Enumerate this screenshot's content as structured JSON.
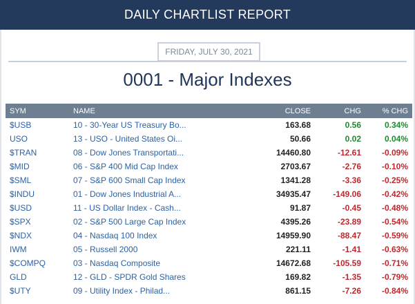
{
  "header": {
    "title": "DAILY CHARTLIST REPORT"
  },
  "date": "FRIDAY, JULY 30, 2021",
  "page_title": "0001 - Major Indexes",
  "table": {
    "columns": [
      "SYM",
      "NAME",
      "CLOSE",
      "CHG",
      "% CHG"
    ],
    "rows": [
      {
        "sym": "$USB",
        "name": "10 - 30-Year US Treasury Bo...",
        "close": "163.68",
        "chg": "0.56",
        "pct": "0.34%",
        "dir": "up"
      },
      {
        "sym": "USO",
        "name": "13 - USO - United States Oi...",
        "close": "50.66",
        "chg": "0.02",
        "pct": "0.04%",
        "dir": "up"
      },
      {
        "sym": "$TRAN",
        "name": "08 - Dow Jones Transportati...",
        "close": "14460.80",
        "chg": "-12.61",
        "pct": "-0.09%",
        "dir": "down"
      },
      {
        "sym": "$MID",
        "name": "06 - S&P 400 Mid Cap Index",
        "close": "2703.67",
        "chg": "-2.76",
        "pct": "-0.10%",
        "dir": "down"
      },
      {
        "sym": "$SML",
        "name": "07 - S&P 600 Small Cap Index",
        "close": "1341.28",
        "chg": "-3.36",
        "pct": "-0.25%",
        "dir": "down"
      },
      {
        "sym": "$INDU",
        "name": "01 - Dow Jones Industrial A...",
        "close": "34935.47",
        "chg": "-149.06",
        "pct": "-0.42%",
        "dir": "down"
      },
      {
        "sym": "$USD",
        "name": "11 - US Dollar Index - Cash...",
        "close": "91.87",
        "chg": "-0.45",
        "pct": "-0.48%",
        "dir": "down"
      },
      {
        "sym": "$SPX",
        "name": "02 - S&P 500 Large Cap Index",
        "close": "4395.26",
        "chg": "-23.89",
        "pct": "-0.54%",
        "dir": "down"
      },
      {
        "sym": "$NDX",
        "name": "04 - Nasdaq 100 Index",
        "close": "14959.90",
        "chg": "-88.47",
        "pct": "-0.59%",
        "dir": "down"
      },
      {
        "sym": "IWM",
        "name": "05 - Russell 2000",
        "close": "221.11",
        "chg": "-1.41",
        "pct": "-0.63%",
        "dir": "down"
      },
      {
        "sym": "$COMPQ",
        "name": "03 - Nasdaq Composite",
        "close": "14672.68",
        "chg": "-105.59",
        "pct": "-0.71%",
        "dir": "down"
      },
      {
        "sym": "GLD",
        "name": "12 - GLD - SPDR Gold Shares",
        "close": "169.82",
        "chg": "-1.35",
        "pct": "-0.79%",
        "dir": "down"
      },
      {
        "sym": "$UTY",
        "name": "09 - Utility Index - Philad...",
        "close": "861.15",
        "chg": "-7.26",
        "pct": "-0.84%",
        "dir": "down"
      }
    ]
  },
  "colors": {
    "header_bg": "#233a5c",
    "table_header_bg": "#6e7f91",
    "link": "#2b62a6",
    "up": "#1e8a2f",
    "down": "#c0272d"
  }
}
